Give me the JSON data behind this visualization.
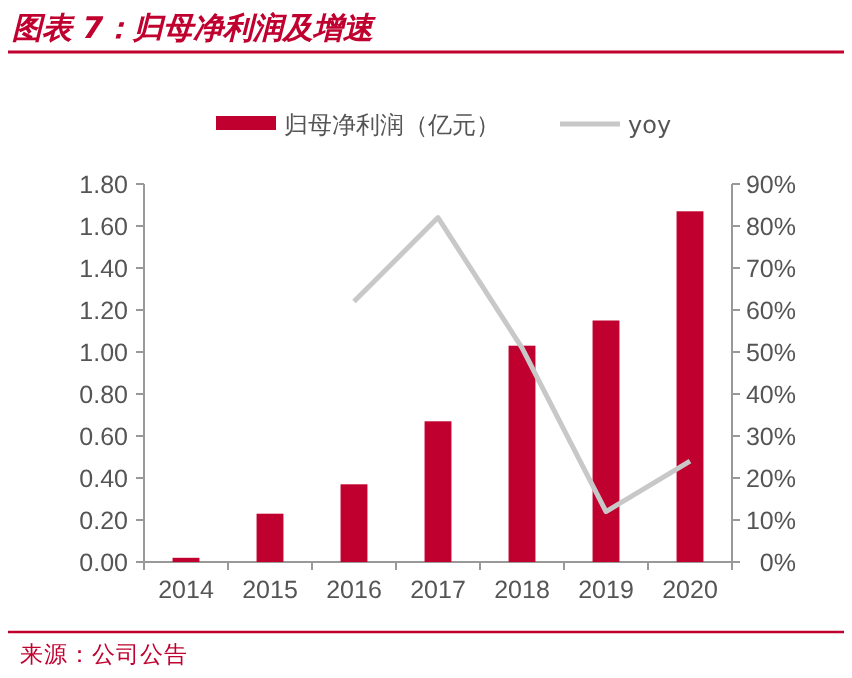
{
  "chart_data": {
    "type": "bar",
    "title": "图表 7：归母净利润及增速",
    "categories": [
      "2014",
      "2015",
      "2016",
      "2017",
      "2018",
      "2019",
      "2020"
    ],
    "series": [
      {
        "name": "归母净利润（亿元）",
        "color": "#c0002f",
        "values": [
          0.02,
          0.23,
          0.37,
          0.67,
          1.03,
          1.15,
          1.67
        ]
      },
      {
        "name": "yoy",
        "type": "line",
        "axis": "y2",
        "color": "#c8c8c8",
        "values": [
          null,
          null,
          62,
          82,
          51,
          12,
          24
        ]
      }
    ],
    "ylim": [
      0,
      1.8
    ],
    "yticks": [
      {
        "value": 0,
        "label": "0.00"
      },
      {
        "value": 0.2,
        "label": "0.20"
      },
      {
        "value": 0.4,
        "label": "0.40"
      },
      {
        "value": 0.6,
        "label": "0.60"
      },
      {
        "value": 0.8,
        "label": "0.80"
      },
      {
        "value": 1,
        "label": "1.00"
      },
      {
        "value": 1.2,
        "label": "1.20"
      },
      {
        "value": 1.4,
        "label": "1.40"
      },
      {
        "value": 1.6,
        "label": "1.60"
      },
      {
        "value": 1.8,
        "label": "1.80"
      }
    ],
    "y2lim": [
      0,
      90
    ],
    "y2ticks": [
      {
        "value": 0,
        "label": "0%"
      },
      {
        "value": 10,
        "label": "10%"
      },
      {
        "value": 20,
        "label": "20%"
      },
      {
        "value": 30,
        "label": "30%"
      },
      {
        "value": 40,
        "label": "40%"
      },
      {
        "value": 50,
        "label": "50%"
      },
      {
        "value": 60,
        "label": "60%"
      },
      {
        "value": 70,
        "label": "70%"
      },
      {
        "value": 80,
        "label": "80%"
      },
      {
        "value": 90,
        "label": "90%"
      }
    ],
    "legend": "top",
    "grid": false,
    "annotations": [
      "来源：公司公告"
    ]
  }
}
